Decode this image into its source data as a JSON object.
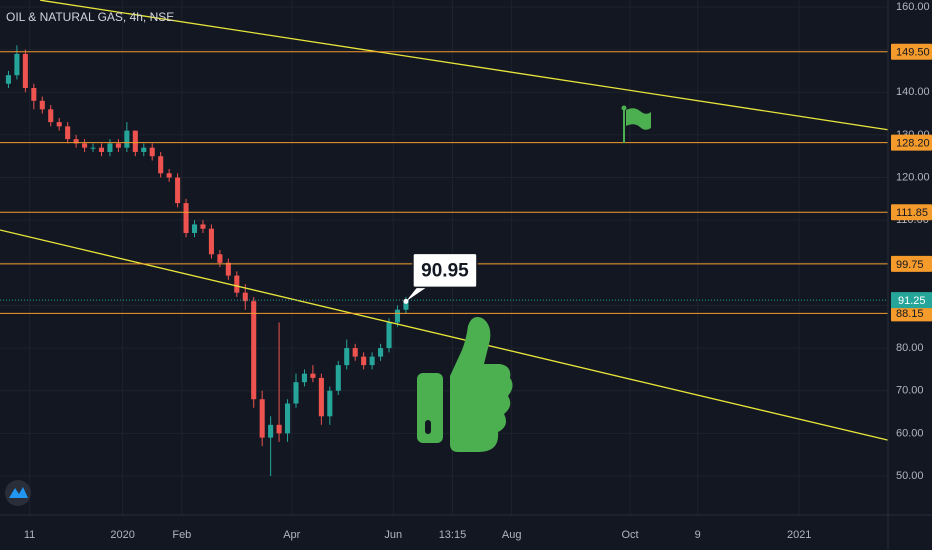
{
  "chart_data": {
    "type": "candlestick",
    "title": "OIL & NATURAL GAS, 4h, NSE",
    "x": [
      2,
      4,
      6,
      8,
      10,
      12,
      14,
      16,
      18,
      20,
      22,
      24,
      26,
      28,
      30,
      32,
      34,
      36,
      38,
      40,
      42,
      44,
      46,
      48,
      50,
      52,
      54,
      56,
      58,
      60,
      62,
      64,
      66,
      68,
      70,
      72,
      74,
      76,
      78,
      80,
      82,
      84,
      86,
      88,
      90,
      92,
      94,
      96
    ],
    "open": [
      142,
      144,
      149,
      141,
      138,
      136,
      133,
      132,
      129,
      128,
      127,
      127,
      126,
      128,
      127,
      131,
      126,
      127,
      125,
      121,
      120,
      114,
      107,
      109,
      108,
      102,
      100,
      97,
      93,
      91,
      68,
      59,
      62,
      60,
      67,
      72,
      74,
      73,
      64,
      70,
      76,
      80,
      78,
      76,
      78,
      80,
      86,
      89
    ],
    "high": [
      145,
      151,
      150,
      142,
      139,
      137,
      134,
      133,
      130,
      129,
      128,
      128,
      129,
      129,
      133,
      131,
      128,
      128,
      126,
      122,
      121,
      115,
      110,
      110,
      109,
      103,
      101,
      98,
      95,
      92,
      70,
      64,
      86,
      68,
      74,
      75,
      76,
      74,
      71,
      77,
      82,
      81,
      79,
      79,
      81,
      87,
      90,
      92
    ],
    "low": [
      141,
      143,
      140,
      136,
      135,
      132,
      131,
      128,
      127,
      126,
      126,
      125,
      125,
      126,
      126,
      125,
      125,
      124,
      120,
      119,
      113,
      106,
      106,
      107,
      101,
      99,
      96,
      92,
      89,
      66,
      57,
      50,
      58,
      58,
      66,
      71,
      72,
      62,
      62,
      69,
      75,
      77,
      75,
      75,
      77,
      79,
      85,
      88
    ],
    "close": [
      144,
      149,
      141,
      138,
      136,
      133,
      132,
      129,
      128,
      127,
      127,
      126,
      128,
      127,
      131,
      126,
      127,
      125,
      121,
      120,
      114,
      107,
      109,
      108,
      102,
      100,
      97,
      93,
      91,
      68,
      59,
      62,
      60,
      67,
      72,
      74,
      73,
      64,
      70,
      76,
      80,
      78,
      76,
      78,
      80,
      86,
      89,
      91
    ],
    "up_color": "#26a69a",
    "down_color": "#ef5350",
    "xlim": [
      0,
      210
    ],
    "xticks": [
      {
        "value": 7,
        "label": "11"
      },
      {
        "value": 29,
        "label": "2020"
      },
      {
        "value": 43,
        "label": "Feb"
      },
      {
        "value": 69,
        "label": "Apr"
      },
      {
        "value": 93,
        "label": "Jun"
      },
      {
        "value": 107,
        "label": "13:15"
      },
      {
        "value": 121,
        "label": "Aug"
      },
      {
        "value": 149,
        "label": "Oct"
      },
      {
        "value": 165,
        "label": "9"
      },
      {
        "value": 189,
        "label": "2021"
      }
    ],
    "ylim": [
      40.85,
      161.64
    ],
    "yticks": [
      {
        "value": 50,
        "label": "50.00"
      },
      {
        "value": 60,
        "label": "60.00"
      },
      {
        "value": 70,
        "label": "70.00"
      },
      {
        "value": 80,
        "label": "80.00"
      },
      {
        "value": 90,
        "label": "90.00"
      },
      {
        "value": 100,
        "label": "100.00"
      },
      {
        "value": 110,
        "label": "110.00"
      },
      {
        "value": 120,
        "label": "120.00"
      },
      {
        "value": 130,
        "label": "130.00"
      },
      {
        "value": 140,
        "label": "140.00"
      },
      {
        "value": 150,
        "label": "150.00"
      },
      {
        "value": 160,
        "label": "160.00"
      }
    ],
    "grid": true,
    "levels": [
      {
        "value": 149.5,
        "label": "149.50"
      },
      {
        "value": 128.2,
        "label": "128.20"
      },
      {
        "value": 111.85,
        "label": "111.85"
      },
      {
        "value": 99.75,
        "label": "99.75"
      },
      {
        "value": 88.15,
        "label": "88.15"
      }
    ],
    "level_color": "#f59b2c",
    "trendlines": [
      {
        "x": [
          9.5,
          210
        ],
        "y": [
          161.6,
          131.2
        ]
      },
      {
        "x": [
          0,
          210
        ],
        "y": [
          107.7,
          58.4
        ]
      }
    ],
    "trend_color": "#e8e53a",
    "last_price": {
      "value": 91.25,
      "label": "91.25",
      "color": "#26a69a"
    },
    "callout": {
      "x": 96,
      "value": 90.95,
      "label": "90.95"
    }
  }
}
